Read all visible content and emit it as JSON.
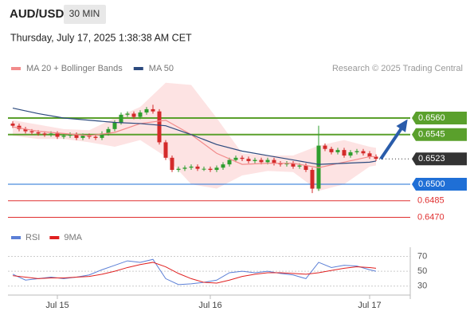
{
  "header": {
    "symbol": "AUD/USD",
    "interval": "30 MIN",
    "timestamp": "Thursday, July 17, 2025 1:38:38 AM CET"
  },
  "chart_data": [
    {
      "type": "candlestick",
      "credit": "Research © 2025 Trading Central",
      "up_color": "#2e9e2e",
      "down_color": "#d42a2a",
      "ylim": [
        0.64646,
        0.65983
      ],
      "categories": [
        null,
        null,
        null,
        null,
        null,
        null,
        null,
        "Jul 15",
        null,
        null,
        null,
        null,
        null,
        null,
        null,
        null,
        null,
        null,
        null,
        null,
        null,
        null,
        null,
        null,
        null,
        null,
        null,
        null,
        null,
        null,
        null,
        "Jul 16",
        null,
        null,
        null,
        null,
        null,
        null,
        null,
        null,
        null,
        null,
        null,
        null,
        null,
        null,
        null,
        null,
        null,
        null,
        null,
        null,
        null,
        null,
        null,
        null,
        "Jul 17",
        null
      ],
      "open": [
        0.6555,
        0.6553,
        0.655,
        0.6548,
        0.6547,
        0.6546,
        0.6545,
        0.6546,
        0.6543,
        0.6544,
        0.6545,
        0.6542,
        0.6544,
        0.6543,
        0.6542,
        0.6546,
        0.655,
        0.6556,
        0.6563,
        0.6564,
        0.6561,
        0.6565,
        0.6568,
        0.6566,
        0.6538,
        0.6524,
        0.6513,
        0.6514,
        0.6515,
        0.6516,
        0.6514,
        0.6514,
        0.6513,
        0.6515,
        0.6518,
        0.6522,
        0.6524,
        0.6523,
        0.6521,
        0.6522,
        0.652,
        0.6522,
        0.6519,
        0.6518,
        0.6519,
        0.6516,
        0.6517,
        0.6513,
        0.6496,
        0.6535,
        0.6532,
        0.6529,
        0.6531,
        0.6526,
        0.6529,
        0.653,
        0.6528,
        0.6525
      ],
      "high": [
        0.6557,
        0.6555,
        0.6552,
        0.655,
        0.6549,
        0.6548,
        0.6548,
        0.6548,
        0.6546,
        0.6547,
        0.6547,
        0.6546,
        0.6546,
        0.6545,
        0.6548,
        0.6552,
        0.6558,
        0.6565,
        0.6566,
        0.6566,
        0.6567,
        0.657,
        0.6572,
        0.6568,
        0.654,
        0.6526,
        0.6516,
        0.6517,
        0.6518,
        0.6518,
        0.6516,
        0.6516,
        0.6517,
        0.652,
        0.6524,
        0.6526,
        0.6526,
        0.6525,
        0.6524,
        0.6524,
        0.6524,
        0.6524,
        0.6521,
        0.6521,
        0.6521,
        0.6519,
        0.6519,
        0.6515,
        0.6553,
        0.6537,
        0.6534,
        0.6533,
        0.6533,
        0.6531,
        0.6532,
        0.6532,
        0.653,
        0.6527
      ],
      "low": [
        0.6551,
        0.6548,
        0.6546,
        0.6545,
        0.6544,
        0.6543,
        0.6543,
        0.6541,
        0.6541,
        0.6542,
        0.654,
        0.654,
        0.6541,
        0.654,
        0.654,
        0.6544,
        0.6548,
        0.6554,
        0.6561,
        0.6559,
        0.6559,
        0.6563,
        0.6564,
        0.6536,
        0.6522,
        0.6511,
        0.6511,
        0.6512,
        0.6513,
        0.6512,
        0.6512,
        0.6511,
        0.6511,
        0.6513,
        0.6516,
        0.652,
        0.6521,
        0.6519,
        0.6519,
        0.6518,
        0.6518,
        0.6517,
        0.6516,
        0.6516,
        0.6514,
        0.6514,
        0.6511,
        0.6492,
        0.6494,
        0.653,
        0.6527,
        0.6527,
        0.6524,
        0.6524,
        0.6527,
        0.6526,
        0.6523,
        0.6521
      ],
      "close": [
        0.6553,
        0.655,
        0.6548,
        0.6547,
        0.6546,
        0.6545,
        0.6546,
        0.6543,
        0.6544,
        0.6545,
        0.6542,
        0.6544,
        0.6543,
        0.6542,
        0.6546,
        0.655,
        0.6556,
        0.6563,
        0.6564,
        0.6561,
        0.6565,
        0.6568,
        0.6566,
        0.6538,
        0.6524,
        0.6513,
        0.6514,
        0.6515,
        0.6516,
        0.6514,
        0.6514,
        0.6513,
        0.6515,
        0.6518,
        0.6522,
        0.6524,
        0.6523,
        0.6521,
        0.6522,
        0.652,
        0.6522,
        0.6519,
        0.6518,
        0.6519,
        0.6516,
        0.6517,
        0.6513,
        0.6496,
        0.6535,
        0.6532,
        0.6529,
        0.6531,
        0.6526,
        0.6529,
        0.653,
        0.6528,
        0.6525,
        0.6523
      ],
      "series": [
        {
          "name": "MA 20 + Bollinger Bands",
          "color": "#f28b8b",
          "band_color": "#fde3e3",
          "x": [
            0,
            4,
            8,
            12,
            16,
            20,
            24,
            28,
            32,
            36,
            40,
            44,
            48,
            52,
            56,
            57
          ],
          "values": [
            0.6552,
            0.6548,
            0.6546,
            0.6544,
            0.6547,
            0.6555,
            0.6558,
            0.6545,
            0.6528,
            0.6518,
            0.6519,
            0.6519,
            0.6515,
            0.652,
            0.6525,
            0.6525
          ],
          "upper": [
            0.6558,
            0.6554,
            0.655,
            0.6549,
            0.656,
            0.657,
            0.6592,
            0.659,
            0.656,
            0.6528,
            0.6526,
            0.6526,
            0.6535,
            0.654,
            0.6534,
            0.6533
          ],
          "lower": [
            0.6544,
            0.6541,
            0.6541,
            0.6538,
            0.6534,
            0.654,
            0.6525,
            0.65,
            0.6496,
            0.6508,
            0.6512,
            0.6511,
            0.6494,
            0.65,
            0.6516,
            0.6517
          ]
        },
        {
          "name": "MA 50",
          "color": "#2c4a7e",
          "x": [
            0,
            4,
            8,
            12,
            16,
            20,
            24,
            28,
            32,
            36,
            40,
            44,
            48,
            52,
            56,
            57
          ],
          "values": [
            0.6569,
            0.6564,
            0.656,
            0.6558,
            0.6556,
            0.6555,
            0.6553,
            0.6545,
            0.6536,
            0.653,
            0.6526,
            0.6522,
            0.6518,
            0.6519,
            0.652,
            0.6521
          ]
        }
      ],
      "levels": [
        {
          "value": 0.656,
          "label": "0.6560",
          "color": "#5aa02c",
          "style": "box"
        },
        {
          "value": 0.6545,
          "label": "0.6545",
          "color": "#5aa02c",
          "style": "box"
        },
        {
          "value": 0.6523,
          "label": "0.6523",
          "color": "#333333",
          "style": "current"
        },
        {
          "value": 0.65,
          "label": "0.6500",
          "color": "#1f6fd6",
          "style": "box"
        },
        {
          "value": 0.6485,
          "label": "0.6485",
          "color": "#e03030",
          "style": "text"
        },
        {
          "value": 0.647,
          "label": "0.6470",
          "color": "#e03030",
          "style": "text"
        }
      ]
    },
    {
      "type": "line",
      "ylim": [
        20,
        77
      ],
      "yticks": [
        30,
        50,
        70
      ],
      "series": [
        {
          "name": "RSI",
          "color": "#5b7fd6",
          "x": [
            0,
            2,
            4,
            6,
            8,
            10,
            12,
            14,
            16,
            18,
            20,
            22,
            24,
            26,
            28,
            30,
            32,
            34,
            36,
            38,
            40,
            42,
            44,
            46,
            48,
            50,
            52,
            54,
            56,
            57
          ],
          "values": [
            46,
            38,
            40,
            42,
            40,
            42,
            45,
            52,
            58,
            64,
            62,
            66,
            40,
            32,
            33,
            35,
            38,
            48,
            50,
            48,
            50,
            47,
            45,
            40,
            62,
            55,
            58,
            57,
            52,
            50
          ]
        },
        {
          "name": "9MA",
          "color": "#e02020",
          "x": [
            0,
            2,
            4,
            6,
            8,
            10,
            12,
            14,
            16,
            18,
            20,
            22,
            24,
            26,
            28,
            30,
            32,
            34,
            36,
            38,
            40,
            42,
            44,
            46,
            48,
            50,
            52,
            54,
            56,
            57
          ],
          "values": [
            44,
            42,
            40,
            41,
            41,
            42,
            43,
            46,
            50,
            55,
            59,
            62,
            56,
            47,
            40,
            35,
            34,
            38,
            43,
            46,
            48,
            48,
            47,
            46,
            48,
            51,
            54,
            56,
            55,
            54
          ]
        }
      ]
    }
  ]
}
